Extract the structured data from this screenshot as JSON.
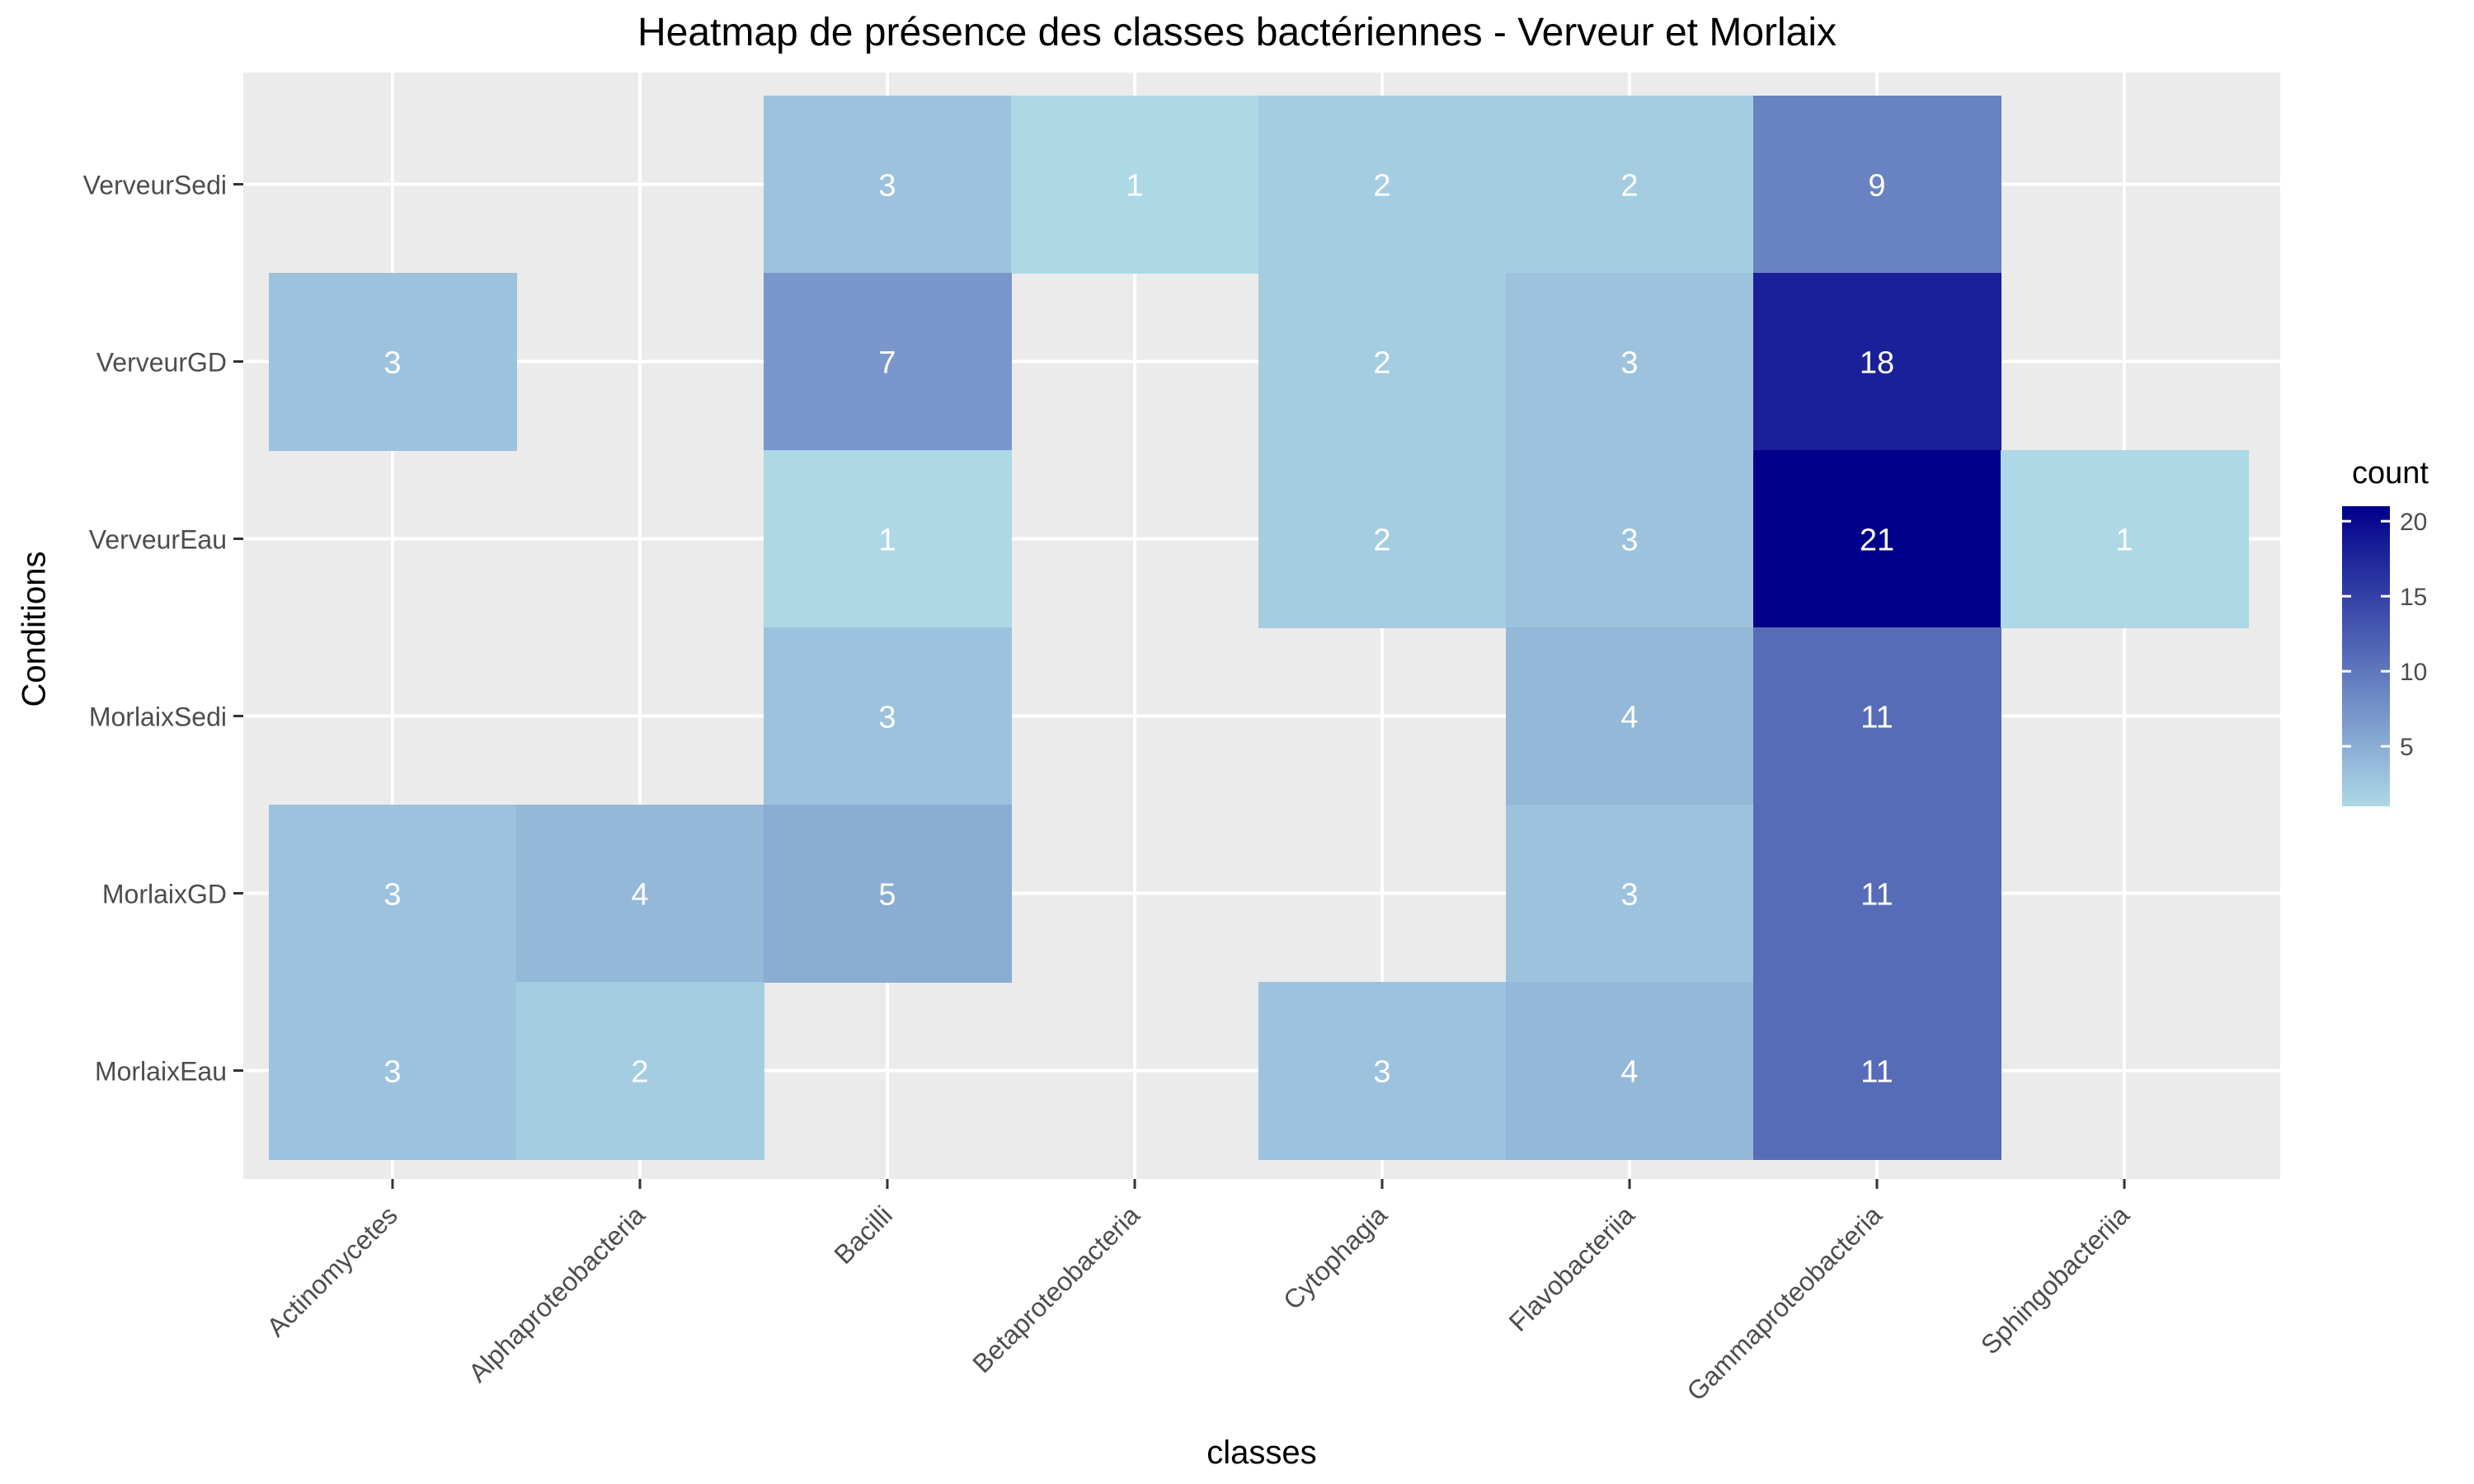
{
  "chart_data": {
    "type": "heatmap",
    "title": "Heatmap de présence des classes bactériennes - Verveur et Morlaix",
    "xlabel": "classes",
    "ylabel": "Conditions",
    "x_categories": [
      "Actinomycetes",
      "Alphaproteobacteria",
      "Bacilli",
      "Betaproteobacteria",
      "Cytophagia",
      "Flavobacteriia",
      "Gammaproteobacteria",
      "Sphingobacteriia"
    ],
    "y_categories": [
      "VerveurSedi",
      "VerveurGD",
      "VerveurEau",
      "MorlaixSedi",
      "MorlaixGD",
      "MorlaixEau"
    ],
    "cells": [
      {
        "x": "Bacilli",
        "y": "VerveurSedi",
        "value": 3
      },
      {
        "x": "Betaproteobacteria",
        "y": "VerveurSedi",
        "value": 1
      },
      {
        "x": "Cytophagia",
        "y": "VerveurSedi",
        "value": 2
      },
      {
        "x": "Flavobacteriia",
        "y": "VerveurSedi",
        "value": 2
      },
      {
        "x": "Gammaproteobacteria",
        "y": "VerveurSedi",
        "value": 9
      },
      {
        "x": "Actinomycetes",
        "y": "VerveurGD",
        "value": 3
      },
      {
        "x": "Bacilli",
        "y": "VerveurGD",
        "value": 7
      },
      {
        "x": "Cytophagia",
        "y": "VerveurGD",
        "value": 2
      },
      {
        "x": "Flavobacteriia",
        "y": "VerveurGD",
        "value": 3
      },
      {
        "x": "Gammaproteobacteria",
        "y": "VerveurGD",
        "value": 18
      },
      {
        "x": "Bacilli",
        "y": "VerveurEau",
        "value": 1
      },
      {
        "x": "Cytophagia",
        "y": "VerveurEau",
        "value": 2
      },
      {
        "x": "Flavobacteriia",
        "y": "VerveurEau",
        "value": 3
      },
      {
        "x": "Gammaproteobacteria",
        "y": "VerveurEau",
        "value": 21
      },
      {
        "x": "Sphingobacteriia",
        "y": "VerveurEau",
        "value": 1
      },
      {
        "x": "Bacilli",
        "y": "MorlaixSedi",
        "value": 3
      },
      {
        "x": "Flavobacteriia",
        "y": "MorlaixSedi",
        "value": 4
      },
      {
        "x": "Gammaproteobacteria",
        "y": "MorlaixSedi",
        "value": 11
      },
      {
        "x": "Actinomycetes",
        "y": "MorlaixGD",
        "value": 3
      },
      {
        "x": "Alphaproteobacteria",
        "y": "MorlaixGD",
        "value": 4
      },
      {
        "x": "Bacilli",
        "y": "MorlaixGD",
        "value": 5
      },
      {
        "x": "Flavobacteriia",
        "y": "MorlaixGD",
        "value": 3
      },
      {
        "x": "Gammaproteobacteria",
        "y": "MorlaixGD",
        "value": 11
      },
      {
        "x": "Actinomycetes",
        "y": "MorlaixEau",
        "value": 3
      },
      {
        "x": "Alphaproteobacteria",
        "y": "MorlaixEau",
        "value": 2
      },
      {
        "x": "Cytophagia",
        "y": "MorlaixEau",
        "value": 3
      },
      {
        "x": "Flavobacteriia",
        "y": "MorlaixEau",
        "value": 4
      },
      {
        "x": "Gammaproteobacteria",
        "y": "MorlaixEau",
        "value": 11
      }
    ],
    "legend": {
      "title": "count",
      "ticks": [
        5,
        10,
        15,
        20
      ],
      "range": [
        1,
        21
      ],
      "low_color": "#add8e6",
      "high_color": "#00008b",
      "placement": "right"
    },
    "colors": {
      "panel_background": "#ebebeb",
      "grid": "#ffffff",
      "cell_label": "#ffffff",
      "axis_text": "#4d4d4d"
    },
    "grid": true
  }
}
